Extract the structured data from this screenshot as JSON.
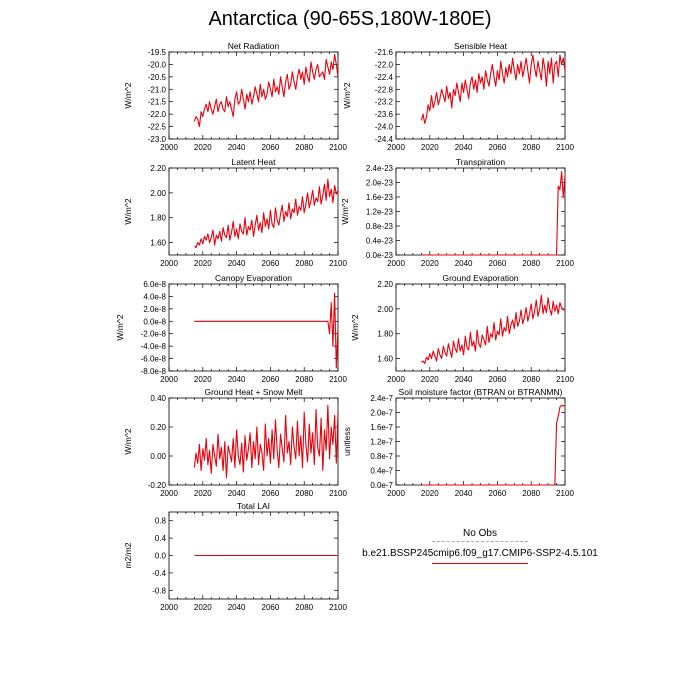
{
  "title": "Antarctica (90-65S,180W-180E)",
  "legend": {
    "obs_label": "No Obs",
    "model_label": "b.e21.BSSP245cmip6.f09_g17.CMIP6-SSP2-4.5.101",
    "obs_color": "#a7a7c8",
    "model_color": "#e8000b"
  },
  "chart_data": [
    {
      "type": "line",
      "title": "Net Radiation",
      "ylabel": "W/m^2",
      "xlabel": "",
      "xlim": [
        2000,
        2100
      ],
      "ylim": [
        -23.0,
        -19.5
      ],
      "xticks": [
        "2000",
        "2020",
        "2040",
        "2060",
        "2080",
        "2100"
      ],
      "yticks": [
        "-23.0",
        "-22.5",
        "-22.0",
        "-21.5",
        "-21.0",
        "-20.5",
        "-20.0",
        "-19.5"
      ],
      "series": [
        {
          "name": "b.e21.BSSP245cmip6.f09_g17.CMIP6-SSP2-4.5.101",
          "x_start": 2015,
          "x_end": 2100,
          "values": [
            -22.3,
            -22.1,
            -22.2,
            -22.5,
            -21.9,
            -22.1,
            -21.8,
            -21.6,
            -21.9,
            -21.5,
            -21.8,
            -22.0,
            -21.7,
            -21.4,
            -21.9,
            -21.6,
            -21.5,
            -21.8,
            -21.9,
            -21.3,
            -21.7,
            -21.5,
            -21.8,
            -22.1,
            -21.4,
            -21.1,
            -21.6,
            -21.5,
            -21.0,
            -21.4,
            -21.8,
            -21.2,
            -21.5,
            -21.1,
            -21.6,
            -21.3,
            -20.9,
            -21.2,
            -21.5,
            -20.8,
            -21.3,
            -21.0,
            -21.4,
            -21.2,
            -20.7,
            -21.0,
            -21.3,
            -20.6,
            -21.1,
            -20.9,
            -21.2,
            -20.5,
            -20.9,
            -21.3,
            -20.7,
            -20.4,
            -21.0,
            -20.8,
            -20.3,
            -20.7,
            -21.0,
            -20.5,
            -20.2,
            -20.6,
            -20.3,
            -20.8,
            -20.1,
            -20.5,
            -20.7,
            -19.9,
            -20.3,
            -20.6,
            -20.2,
            -20.0,
            -20.5,
            -20.4,
            -20.3,
            -20.6,
            -19.8,
            -20.1,
            -20.4,
            -19.9,
            -20.2,
            -19.6,
            -20.0,
            -20.5
          ]
        }
      ]
    },
    {
      "type": "line",
      "title": "Sensible Heat",
      "ylabel": "",
      "xlabel": "",
      "xlim": [
        2000,
        2100
      ],
      "ylim": [
        -24.4,
        -21.6
      ],
      "xticks": [
        "2000",
        "2020",
        "2040",
        "2060",
        "2080",
        "2100"
      ],
      "yticks": [
        "-24.4",
        "-24.0",
        "-23.6",
        "-23.2",
        "-22.8",
        "-22.4",
        "-22.0",
        "-21.6"
      ],
      "series": [
        {
          "name": "b.e21.BSSP245cmip6.f09_g17.CMIP6-SSP2-4.5.101",
          "x_start": 2015,
          "x_end": 2100,
          "values": [
            -23.8,
            -23.6,
            -23.9,
            -23.7,
            -23.3,
            -23.5,
            -23.0,
            -23.4,
            -23.2,
            -22.9,
            -23.3,
            -23.1,
            -22.8,
            -23.0,
            -23.2,
            -22.7,
            -23.1,
            -22.9,
            -23.4,
            -22.8,
            -23.0,
            -22.6,
            -22.9,
            -23.2,
            -22.6,
            -22.9,
            -22.5,
            -22.8,
            -23.1,
            -22.6,
            -22.4,
            -22.8,
            -22.5,
            -22.9,
            -22.3,
            -22.6,
            -22.4,
            -22.8,
            -22.2,
            -22.5,
            -22.7,
            -22.3,
            -22.0,
            -22.4,
            -22.7,
            -22.2,
            -22.5,
            -21.9,
            -22.3,
            -22.6,
            -22.1,
            -22.4,
            -22.0,
            -22.3,
            -21.8,
            -22.2,
            -22.5,
            -22.0,
            -22.3,
            -21.9,
            -22.4,
            -22.1,
            -21.8,
            -22.2,
            -22.6,
            -22.0,
            -21.7,
            -22.1,
            -22.4,
            -21.9,
            -22.2,
            -22.5,
            -21.8,
            -22.1,
            -22.7,
            -21.9,
            -22.3,
            -21.8,
            -22.6,
            -22.0,
            -21.9,
            -22.4,
            -21.7,
            -22.0,
            -21.8,
            -22.2
          ]
        }
      ]
    },
    {
      "type": "line",
      "title": "Latent Heat",
      "ylabel": "W/m^2",
      "xlabel": "",
      "xlim": [
        2000,
        2100
      ],
      "ylim": [
        1.5,
        2.2
      ],
      "xticks": [
        "2000",
        "2020",
        "2040",
        "2060",
        "2080",
        "2100"
      ],
      "yticks": [
        "1.60",
        "1.80",
        "2.00",
        "2.20"
      ],
      "series": [
        {
          "name": "b.e21.BSSP245cmip6.f09_g17.CMIP6-SSP2-4.5.101",
          "x_start": 2015,
          "x_end": 2100,
          "values": [
            1.57,
            1.56,
            1.6,
            1.58,
            1.63,
            1.59,
            1.65,
            1.62,
            1.67,
            1.6,
            1.64,
            1.7,
            1.58,
            1.66,
            1.63,
            1.69,
            1.61,
            1.72,
            1.66,
            1.64,
            1.74,
            1.62,
            1.68,
            1.77,
            1.65,
            1.71,
            1.63,
            1.75,
            1.69,
            1.67,
            1.8,
            1.66,
            1.73,
            1.7,
            1.78,
            1.65,
            1.74,
            1.82,
            1.7,
            1.76,
            1.68,
            1.84,
            1.73,
            1.79,
            1.71,
            1.86,
            1.75,
            1.72,
            1.88,
            1.78,
            1.74,
            1.83,
            1.9,
            1.77,
            1.85,
            1.81,
            1.92,
            1.79,
            1.87,
            1.84,
            1.95,
            1.82,
            1.89,
            1.86,
            1.97,
            1.84,
            1.91,
            2.0,
            1.88,
            1.94,
            2.02,
            1.9,
            1.96,
            1.93,
            2.05,
            1.91,
            1.98,
            2.07,
            1.94,
            2.11,
            1.97,
            2.03,
            1.92,
            2.06,
            1.99,
            2.02
          ]
        }
      ]
    },
    {
      "type": "line",
      "title": "Transpiration",
      "ylabel": "",
      "xlabel": "",
      "xlim": [
        2000,
        2100
      ],
      "ylim": [
        0,
        2.4e-23
      ],
      "xticks": [
        "2000",
        "2020",
        "2040",
        "2060",
        "2080",
        "2100"
      ],
      "yticks": [
        "0.0e-23",
        "0.4e-23",
        "0.8e-23",
        "1.2e-23",
        "1.6e-23",
        "2.0e-23",
        "2.4e-23"
      ],
      "series": [
        {
          "name": "b.e21.BSSP245cmip6.f09_g17.CMIP6-SSP2-4.5.101",
          "points": [
            [
              2015,
              0
            ],
            [
              2095,
              0
            ],
            [
              2096,
              1.9e-23
            ],
            [
              2097,
              1.8e-23
            ],
            [
              2098,
              2.3e-23
            ],
            [
              2099,
              1.6e-23
            ],
            [
              2100,
              2.2e-23
            ]
          ]
        }
      ]
    },
    {
      "type": "line",
      "title": "Canopy Evaporation",
      "ylabel": "W/m^2",
      "xlabel": "",
      "xlim": [
        2000,
        2100
      ],
      "ylim": [
        -8e-08,
        6e-08
      ],
      "xticks": [
        "2000",
        "2020",
        "2040",
        "2060",
        "2080",
        "2100"
      ],
      "yticks": [
        "-8.0e-8",
        "-6.0e-8",
        "-4.0e-8",
        "-2.0e-8",
        "0.0e-8",
        "2.0e-8",
        "4.0e-8",
        "6.0e-8"
      ],
      "series": [
        {
          "name": "b.e21.BSSP245cmip6.f09_g17.CMIP6-SSP2-4.5.101",
          "points": [
            [
              2015,
              0
            ],
            [
              2094,
              0
            ],
            [
              2095,
              -2e-08
            ],
            [
              2096,
              3e-08
            ],
            [
              2097,
              -4e-08
            ],
            [
              2098,
              4.5e-08
            ],
            [
              2099,
              -7.5e-08
            ],
            [
              2100,
              -1e-08
            ]
          ]
        }
      ]
    },
    {
      "type": "line",
      "title": "Ground Evaporation",
      "ylabel": "W/m^2",
      "xlabel": "",
      "xlim": [
        2000,
        2100
      ],
      "ylim": [
        1.5,
        2.2
      ],
      "xticks": [
        "2000",
        "2020",
        "2040",
        "2060",
        "2080",
        "2100"
      ],
      "yticks": [
        "1.60",
        "1.80",
        "2.00",
        "2.20"
      ],
      "series": [
        {
          "name": "b.e21.BSSP245cmip6.f09_g17.CMIP6-SSP2-4.5.101",
          "x_start": 2015,
          "x_end": 2100,
          "values": [
            1.57,
            1.58,
            1.56,
            1.61,
            1.59,
            1.64,
            1.6,
            1.66,
            1.62,
            1.58,
            1.68,
            1.63,
            1.6,
            1.7,
            1.65,
            1.62,
            1.72,
            1.66,
            1.61,
            1.74,
            1.68,
            1.65,
            1.76,
            1.66,
            1.71,
            1.63,
            1.78,
            1.69,
            1.67,
            1.81,
            1.7,
            1.74,
            1.66,
            1.83,
            1.72,
            1.69,
            1.79,
            1.75,
            1.71,
            1.86,
            1.73,
            1.8,
            1.77,
            1.89,
            1.75,
            1.82,
            1.79,
            1.92,
            1.78,
            1.85,
            1.82,
            1.94,
            1.8,
            1.87,
            1.91,
            1.84,
            1.97,
            1.86,
            1.9,
            1.99,
            1.88,
            1.93,
            2.01,
            1.9,
            1.96,
            2.04,
            1.92,
            1.98,
            2.07,
            1.94,
            2.0,
            2.11,
            1.96,
            2.03,
            1.97,
            2.09,
            2.0,
            1.95,
            2.06,
            1.98,
            2.03,
            1.96,
            2.05,
            2.01,
            1.99,
            2.0
          ]
        }
      ]
    },
    {
      "type": "line",
      "title": "Ground Heat + Snow Melt",
      "ylabel": "W/m^2",
      "xlabel": "",
      "xlim": [
        2000,
        2100
      ],
      "ylim": [
        -0.2,
        0.4
      ],
      "xticks": [
        "2000",
        "2020",
        "2040",
        "2060",
        "2080",
        "2100"
      ],
      "yticks": [
        "-0.20",
        "0.00",
        "0.20",
        "0.40"
      ],
      "series": [
        {
          "name": "b.e21.BSSP245cmip6.f09_g17.CMIP6-SSP2-4.5.101",
          "x_start": 2015,
          "x_end": 2100,
          "values": [
            -0.08,
            0.02,
            -0.05,
            0.08,
            -0.1,
            0.05,
            -0.03,
            0.12,
            -0.06,
            0.04,
            -0.12,
            0.08,
            0.0,
            -0.07,
            0.15,
            -0.02,
            0.06,
            -0.1,
            0.1,
            -0.15,
            0.07,
            0.02,
            -0.04,
            0.12,
            -0.08,
            0.18,
            0.0,
            -0.06,
            0.09,
            -0.11,
            0.14,
            -0.03,
            0.05,
            0.16,
            -0.08,
            0.1,
            -0.02,
            0.2,
            -0.06,
            0.08,
            0.02,
            -0.1,
            0.22,
            0.0,
            0.12,
            -0.05,
            0.18,
            -0.02,
            0.25,
            0.04,
            -0.08,
            0.15,
            0.05,
            -0.04,
            0.28,
            0.02,
            0.1,
            -0.06,
            0.2,
            0.06,
            -0.02,
            0.24,
            0.0,
            0.14,
            -0.08,
            0.3,
            0.08,
            -0.04,
            0.22,
            0.02,
            0.16,
            -0.06,
            0.32,
            0.06,
            0.0,
            0.26,
            -0.1,
            0.18,
            0.04,
            0.35,
            -0.02,
            0.2,
            0.08,
            0.28,
            -0.05,
            0.3
          ]
        }
      ]
    },
    {
      "type": "line",
      "title": "Soil moisture factor (BTRAN or BTRANMN)",
      "ylabel": "unitless",
      "xlabel": "",
      "xlim": [
        2000,
        2100
      ],
      "ylim": [
        0,
        2.4e-07
      ],
      "xticks": [
        "2000",
        "2020",
        "2040",
        "2060",
        "2080",
        "2100"
      ],
      "yticks": [
        "0.0e-7",
        "0.4e-7",
        "0.8e-7",
        "1.2e-7",
        "1.6e-7",
        "2.0e-7",
        "2.4e-7"
      ],
      "series": [
        {
          "name": "b.e21.BSSP245cmip6.f09_g17.CMIP6-SSP2-4.5.101",
          "points": [
            [
              2015,
              0
            ],
            [
              2094,
              0
            ],
            [
              2095,
              1.7e-07
            ],
            [
              2096,
              1.9e-07
            ],
            [
              2097,
              2.15e-07
            ],
            [
              2098,
              2.2e-07
            ],
            [
              2099,
              2.18e-07
            ],
            [
              2100,
              2.2e-07
            ]
          ]
        }
      ]
    },
    {
      "type": "line",
      "title": "Total LAI",
      "ylabel": "m2/m2",
      "xlabel": "",
      "xlim": [
        2000,
        2100
      ],
      "ylim": [
        -1.0,
        1.0
      ],
      "xticks": [
        "2000",
        "2020",
        "2040",
        "2060",
        "2080",
        "2100"
      ],
      "yticks": [
        "-0.8",
        "-0.4",
        "0.0",
        "0.4",
        "0.8"
      ],
      "series": [
        {
          "name": "b.e21.BSSP245cmip6.f09_g17.CMIP6-SSP2-4.5.101",
          "points": [
            [
              2015,
              0
            ],
            [
              2100,
              0
            ]
          ]
        }
      ]
    }
  ]
}
